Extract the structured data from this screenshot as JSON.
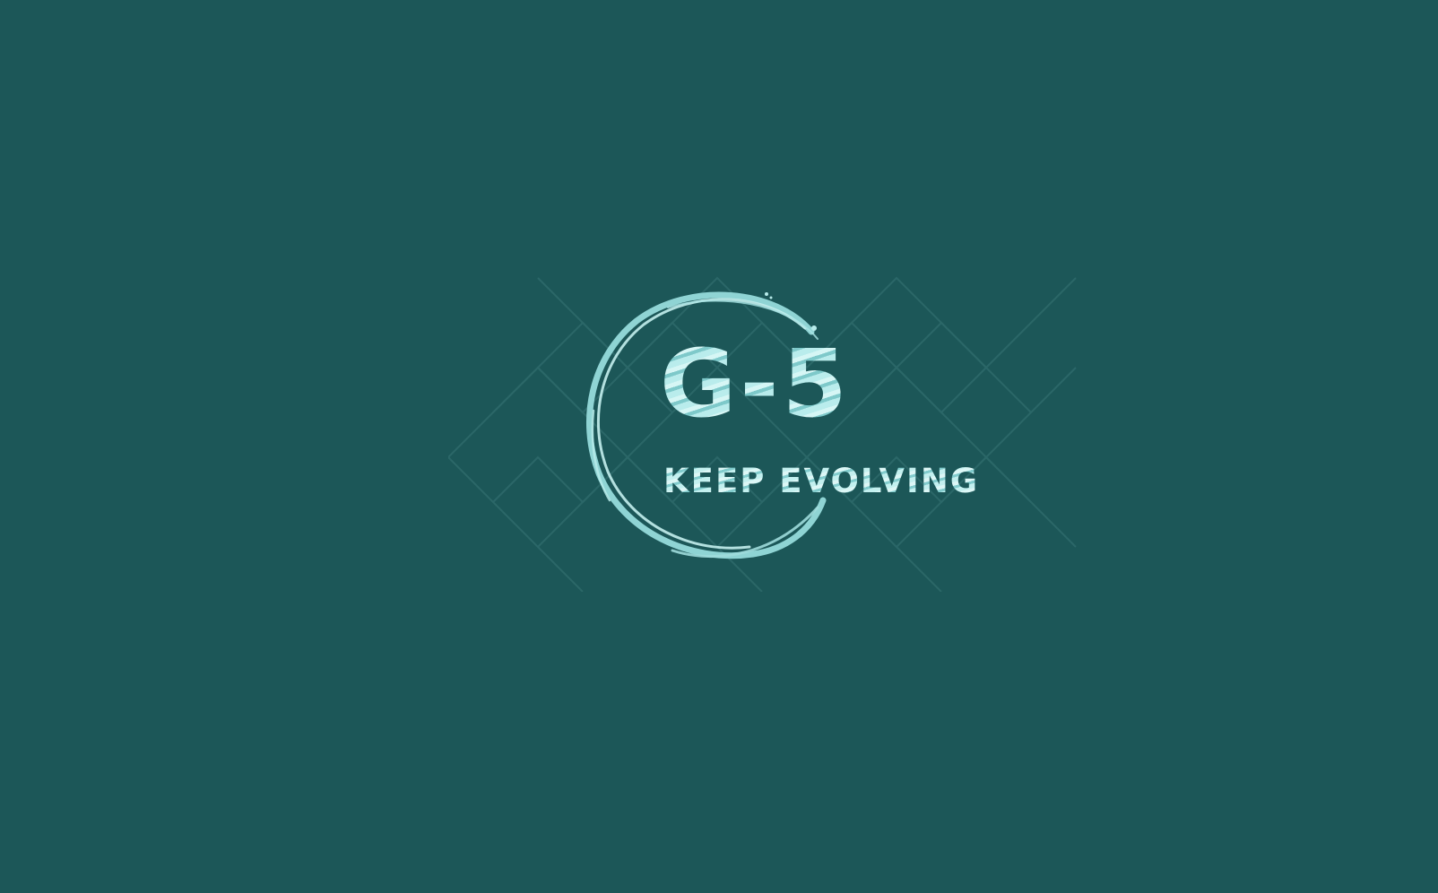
{
  "screen": {
    "background_color": "#1c5758",
    "accent_color": "#9fdcdc"
  },
  "logo": {
    "title": "G-5",
    "tagline": "KEEP EVOLVING",
    "ring_icon": "brush-circle-icon",
    "pattern_icon": "diamond-lattice-pattern"
  }
}
